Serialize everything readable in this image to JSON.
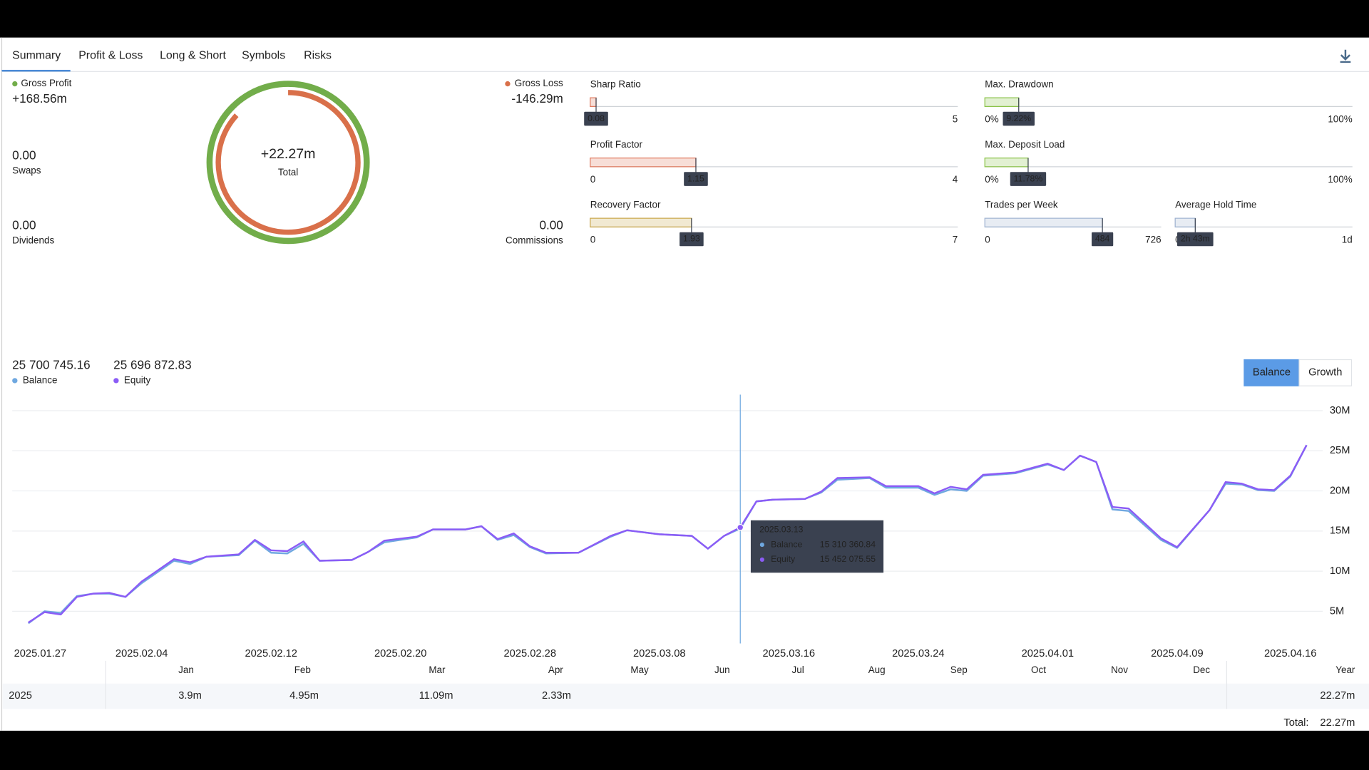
{
  "tabs": [
    "Summary",
    "Profit & Loss",
    "Long & Short",
    "Symbols",
    "Risks"
  ],
  "active_tab": 0,
  "summary": {
    "gross_profit": {
      "label": "Gross Profit",
      "value": {
        "value": 168.56,
        "label": "+168.56m"
      },
      "color": "#72ad4a"
    },
    "gross_loss": {
      "label": "Gross Loss",
      "value": {
        "value": -146.29,
        "label": "-146.29m"
      },
      "color": "#d9704a"
    },
    "total": {
      "label": "Total",
      "value": {
        "value": 22.27,
        "label": "+22.27m"
      }
    },
    "swaps": {
      "label": "Swaps",
      "value": "0.00"
    },
    "dividends": {
      "label": "Dividends",
      "value": "0.00"
    },
    "commissions": {
      "label": "Commissions",
      "value": "0.00"
    }
  },
  "metrics": [
    {
      "name": "Sharp Ratio",
      "min": 0,
      "max": 5,
      "value": 0.08,
      "color": "#e07a5f"
    },
    {
      "name": "Profit Factor",
      "min": 0,
      "max": 4,
      "value": 1.15,
      "color": "#e07a5f"
    },
    {
      "name": "Recovery Factor",
      "min": 0,
      "max": 7,
      "value": 1.93,
      "color": "#c9a64a"
    },
    {
      "name": "Max. Drawdown",
      "min": {
        "value": 0,
        "label": "0%"
      },
      "max": {
        "value": 100,
        "label": "100%"
      },
      "value": {
        "value": 9.22,
        "label": "9.22%"
      },
      "color": "#8bc34a"
    },
    {
      "name": "Max. Deposit Load",
      "min": {
        "value": 0,
        "label": "0%"
      },
      "max": {
        "value": 100,
        "label": "100%"
      },
      "value": {
        "value": 11.78,
        "label": "11.78%"
      },
      "color": "#8bc34a"
    },
    {
      "name": "Trades per Week",
      "min": 0,
      "max": 726,
      "value": 484,
      "color": "#9fb3d1"
    },
    {
      "name": "Average Hold Time",
      "min": 0,
      "max": {
        "value": 1440,
        "label": "1d"
      },
      "value": {
        "value": 163,
        "label": "2h 43m"
      },
      "color": "#9fb3d1"
    }
  ],
  "chart_data": {
    "type": "line",
    "x": [
      "2025.01.28",
      "2025.01.29",
      "2025.01.30",
      "2025.01.31",
      "2025.02.01",
      "2025.02.02",
      "2025.02.03",
      "2025.02.04",
      "2025.02.06",
      "2025.02.07",
      "2025.02.08",
      "2025.02.10",
      "2025.02.11",
      "2025.02.12",
      "2025.02.13",
      "2025.02.14",
      "2025.02.15",
      "2025.02.17",
      "2025.02.18",
      "2025.02.19",
      "2025.02.21",
      "2025.02.22",
      "2025.02.24",
      "2025.02.25",
      "2025.02.26",
      "2025.02.27",
      "2025.02.28",
      "2025.03.01",
      "2025.03.03",
      "2025.03.05",
      "2025.03.06",
      "2025.03.08",
      "2025.03.10",
      "2025.03.11",
      "2025.03.12",
      "2025.03.13",
      "2025.03.14",
      "2025.03.15",
      "2025.03.17",
      "2025.03.18",
      "2025.03.19",
      "2025.03.21",
      "2025.03.22",
      "2025.03.24",
      "2025.03.25",
      "2025.03.26",
      "2025.03.27",
      "2025.03.28",
      "2025.03.30",
      "2025.04.01",
      "2025.04.02",
      "2025.04.03",
      "2025.04.04",
      "2025.04.05",
      "2025.04.06",
      "2025.04.08",
      "2025.04.09",
      "2025.04.11",
      "2025.04.12",
      "2025.04.13",
      "2025.04.14",
      "2025.04.15",
      "2025.04.16",
      "2025.04.17"
    ],
    "series": [
      {
        "name": "Balance",
        "color": "#6fa8e0",
        "values": [
          3500000,
          5000000,
          4800000,
          6900000,
          7200000,
          7200000,
          6800000,
          8500000,
          11300000,
          10900000,
          11800000,
          12000000,
          13800000,
          12300000,
          12200000,
          13400000,
          11300000,
          11400000,
          12400000,
          13600000,
          14200000,
          15200000,
          15200000,
          15600000,
          13900000,
          14500000,
          13000000,
          12200000,
          12300000,
          14300000,
          15100000,
          14600000,
          14400000,
          12800000,
          14400000,
          15310360.84,
          18700000,
          18900000,
          19000000,
          19800000,
          21400000,
          21600000,
          20400000,
          20400000,
          19500000,
          20200000,
          20000000,
          21900000,
          22200000,
          23300000,
          22600000,
          24400000,
          23600000,
          17700000,
          17500000,
          13900000,
          12900000,
          17600000,
          20900000,
          20800000,
          20100000,
          20000000,
          21800000,
          25700745.16
        ]
      },
      {
        "name": "Equity",
        "color": "#8b5cf6",
        "values": [
          3600000,
          4900000,
          4600000,
          6800000,
          7200000,
          7300000,
          6800000,
          8700000,
          11500000,
          11100000,
          11800000,
          12100000,
          13900000,
          12600000,
          12500000,
          13700000,
          11300000,
          11400000,
          12400000,
          13800000,
          14300000,
          15200000,
          15200000,
          15600000,
          14000000,
          14700000,
          13100000,
          12300000,
          12300000,
          14400000,
          15100000,
          14600000,
          14400000,
          12800000,
          14400000,
          15452075.55,
          18700000,
          18900000,
          19000000,
          19900000,
          21600000,
          21700000,
          20600000,
          20600000,
          19700000,
          20500000,
          20200000,
          22000000,
          22300000,
          23400000,
          22600000,
          24400000,
          23600000,
          18000000,
          17800000,
          14100000,
          13000000,
          17600000,
          21100000,
          20900000,
          20200000,
          20100000,
          21900000,
          25696872.83
        ]
      }
    ],
    "latest_labels": [
      "25 700 745.16",
      "25 696 872.83"
    ],
    "xlim": [
      "2025.01.27",
      "2025.04.18"
    ],
    "xticks": [
      "2025.01.27",
      "2025.02.04",
      "2025.02.12",
      "2025.02.20",
      "2025.02.28",
      "2025.03.08",
      "2025.03.16",
      "2025.03.24",
      "2025.04.01",
      "2025.04.09",
      "2025.04.16"
    ],
    "ylim": [
      1000000,
      32000000
    ],
    "yticks": [
      {
        "value": 5000000,
        "label": "5M"
      },
      {
        "value": 10000000,
        "label": "10M"
      },
      {
        "value": 15000000,
        "label": "15M"
      },
      {
        "value": 20000000,
        "label": "20M"
      },
      {
        "value": 25000000,
        "label": "25M"
      },
      {
        "value": 30000000,
        "label": "30M"
      }
    ],
    "grid": true,
    "views": [
      "Balance",
      "Growth"
    ],
    "active_view": 0,
    "tooltip": {
      "x": "2025.03.13",
      "value_labels": [
        "15 310 360.84",
        "15 452 075.55"
      ]
    }
  },
  "monthly": {
    "columns": [
      "Jan",
      "Feb",
      "Mar",
      "Apr",
      "May",
      "Jun",
      "Jul",
      "Aug",
      "Sep",
      "Oct",
      "Nov",
      "Dec"
    ],
    "year_label": "Year",
    "rows": [
      {
        "year": "2025",
        "months": [
          "3.9m",
          "4.95m",
          "11.09m",
          "2.33m",
          null,
          null,
          null,
          null,
          null,
          null,
          null,
          null
        ],
        "total": "22.27m"
      }
    ],
    "total_label": "Total:",
    "total": "22.27m"
  }
}
